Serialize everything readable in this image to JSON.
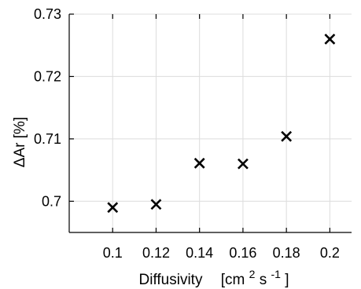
{
  "chart_data": {
    "type": "scatter",
    "title": "",
    "xlabel": "Diffusivity",
    "xlabel_unit_parts": [
      "[cm",
      "2",
      "s",
      "-1",
      "]"
    ],
    "ylabel": "ΔAr [%]",
    "xlim": [
      0.08,
      0.21
    ],
    "ylim": [
      0.695,
      0.73
    ],
    "x_ticks": [
      0.1,
      0.12,
      0.14,
      0.16,
      0.18,
      0.2
    ],
    "x_tick_labels": [
      "0.1",
      "0.12",
      "0.14",
      "0.16",
      "0.18",
      "0.2"
    ],
    "y_ticks": [
      0.7,
      0.71,
      0.72,
      0.73
    ],
    "y_tick_labels": [
      "0.7",
      "0.71",
      "0.72",
      "0.73"
    ],
    "grid": true,
    "marker": "x",
    "marker_color": "#000000",
    "series": [
      {
        "x": [
          0.1,
          0.12,
          0.14,
          0.16,
          0.18,
          0.2
        ],
        "y": [
          0.699,
          0.6995,
          0.7061,
          0.706,
          0.7104,
          0.726
        ]
      }
    ]
  }
}
